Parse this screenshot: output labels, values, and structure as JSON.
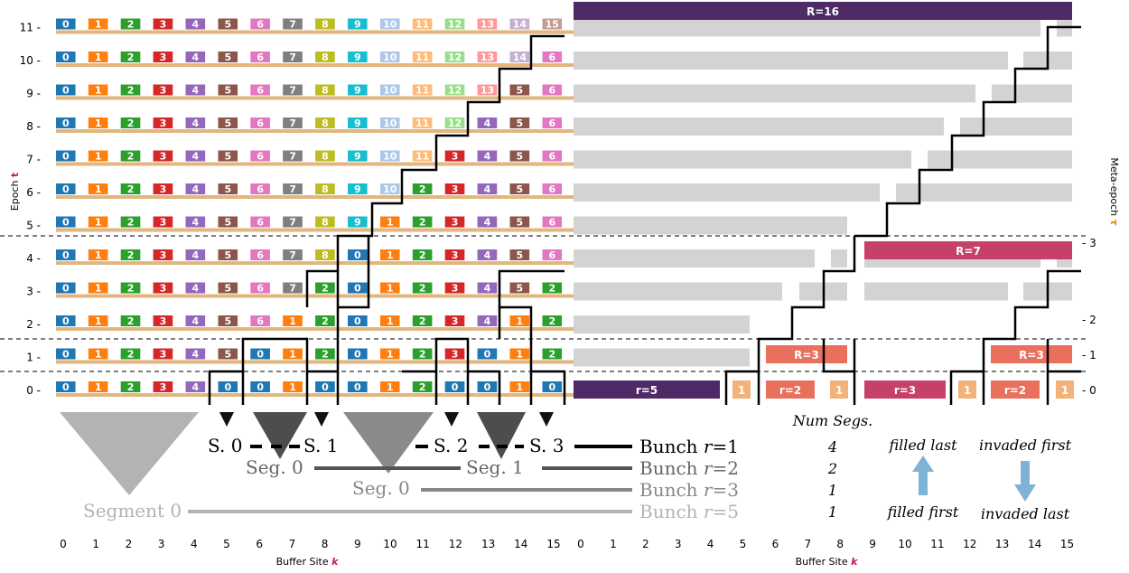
{
  "palette": [
    "#1f77b4",
    "#ff7f0e",
    "#2ca02c",
    "#d62728",
    "#9467bd",
    "#8c564b",
    "#e377c2",
    "#7f7f7f",
    "#bcbd22",
    "#17becf",
    "#aec7e8",
    "#ffbb78",
    "#98df8a",
    "#ff9896",
    "#c5b0d5",
    "#c49c94"
  ],
  "colors": {
    "underline": "#e2b67f",
    "bar_gray": "#d3d3d3",
    "r16": "#4e2a66",
    "r7": "#c64068",
    "r3": "#e8705d",
    "r1": "#f2b27a",
    "r5_bottom": "#4e2a66",
    "r2_bottom": "#e8705d",
    "r3_bottom": "#c64068"
  },
  "left_panel": {
    "ylabel_prefix": "Epoch ",
    "ylabel_var": "t",
    "xlabel_prefix": "Buffer Site ",
    "xlabel_var": "k",
    "y_ticks": [
      "0",
      "1",
      "2",
      "3",
      "4",
      "5",
      "6",
      "7",
      "8",
      "9",
      "10",
      "11"
    ],
    "x_ticks": [
      "0",
      "1",
      "2",
      "3",
      "4",
      "5",
      "6",
      "7",
      "8",
      "9",
      "10",
      "11",
      "12",
      "13",
      "14",
      "15"
    ],
    "grid": [
      [
        "0",
        "1",
        "2",
        "3",
        "4",
        "",
        "0",
        "",
        "0",
        "1",
        "",
        "0",
        "",
        "0",
        "1",
        "",
        "0"
      ],
      [],
      [],
      [],
      [],
      [],
      [],
      [],
      [],
      [],
      [],
      []
    ],
    "rows": [
      [
        "0",
        "1",
        "2",
        "3",
        "4",
        "0",
        "0",
        "1",
        "0",
        "0",
        "1",
        "2",
        "0",
        "0",
        "1",
        "0"
      ],
      [
        "0",
        "1",
        "2",
        "3",
        "4",
        "5",
        "0",
        "1",
        "2",
        "0",
        "1",
        "2",
        "3",
        "0",
        "1",
        "2"
      ],
      [
        "0",
        "1",
        "2",
        "3",
        "4",
        "5",
        "6",
        "1",
        "2",
        "0",
        "1",
        "2",
        "3",
        "4",
        "1",
        "2"
      ],
      [
        "0",
        "1",
        "2",
        "3",
        "4",
        "5",
        "6",
        "7",
        "2",
        "0",
        "1",
        "2",
        "3",
        "4",
        "5",
        "2"
      ],
      [
        "0",
        "1",
        "2",
        "3",
        "4",
        "5",
        "6",
        "7",
        "8",
        "0",
        "1",
        "2",
        "3",
        "4",
        "5",
        "6"
      ],
      [
        "0",
        "1",
        "2",
        "3",
        "4",
        "5",
        "6",
        "7",
        "8",
        "9",
        "1",
        "2",
        "3",
        "4",
        "5",
        "6"
      ],
      [
        "0",
        "1",
        "2",
        "3",
        "4",
        "5",
        "6",
        "7",
        "8",
        "9",
        "10",
        "2",
        "3",
        "4",
        "5",
        "6"
      ],
      [
        "0",
        "1",
        "2",
        "3",
        "4",
        "5",
        "6",
        "7",
        "8",
        "9",
        "10",
        "11",
        "3",
        "4",
        "5",
        "6"
      ],
      [
        "0",
        "1",
        "2",
        "3",
        "4",
        "5",
        "6",
        "7",
        "8",
        "9",
        "10",
        "11",
        "12",
        "4",
        "5",
        "6"
      ],
      [
        "0",
        "1",
        "2",
        "3",
        "4",
        "5",
        "6",
        "7",
        "8",
        "9",
        "10",
        "11",
        "12",
        "13",
        "5",
        "6"
      ],
      [
        "0",
        "1",
        "2",
        "3",
        "4",
        "5",
        "6",
        "7",
        "8",
        "9",
        "10",
        "11",
        "12",
        "13",
        "14",
        "6"
      ],
      [
        "0",
        "1",
        "2",
        "3",
        "4",
        "5",
        "6",
        "7",
        "8",
        "9",
        "10",
        "11",
        "12",
        "13",
        "14",
        "15"
      ]
    ]
  },
  "right_panel": {
    "ylabel_prefix": "Meta-epoch ",
    "ylabel_var": "τ",
    "xlabel_prefix": "Buffer Site ",
    "xlabel_var": "k",
    "x_ticks": [
      "0",
      "1",
      "2",
      "3",
      "4",
      "5",
      "6",
      "7",
      "8",
      "9",
      "10",
      "11",
      "12",
      "13",
      "14",
      "15"
    ],
    "meta_ticks": [
      "0",
      "1",
      "2",
      "3"
    ],
    "labels": {
      "r16": "R=16",
      "r7": "R=7",
      "r3_left": "R=3",
      "r3_right": "R=3",
      "b_r5": "r=5",
      "b_one_a": "1",
      "b_r2_a": "r=2",
      "b_one_b": "1",
      "b_r3": "r=3",
      "b_one_c": "1",
      "b_r2_b": "r=2",
      "b_one_d": "1"
    }
  },
  "legend": {
    "num_segs_header": "Num Segs.",
    "bunches": [
      {
        "label": "Bunch ",
        "var": "r",
        "value": "=1",
        "segs": "4"
      },
      {
        "label": "Bunch ",
        "var": "r",
        "value": "=2",
        "segs": "2"
      },
      {
        "label": "Bunch ",
        "var": "r",
        "value": "=3",
        "segs": "1"
      },
      {
        "label": "Bunch ",
        "var": "r",
        "value": "=5",
        "segs": "1"
      }
    ],
    "s_labels": [
      "S. 0",
      "S. 1",
      "S. 2",
      "S. 3"
    ],
    "seg_labels": [
      "Seg. 0",
      "Seg. 1"
    ],
    "seg3_label": "Seg. 0",
    "segment_label": "Segment 0",
    "filled_last": "filled last",
    "filled_first": "filled first",
    "invaded_first": "invaded first",
    "invaded_last": "invaded last"
  }
}
